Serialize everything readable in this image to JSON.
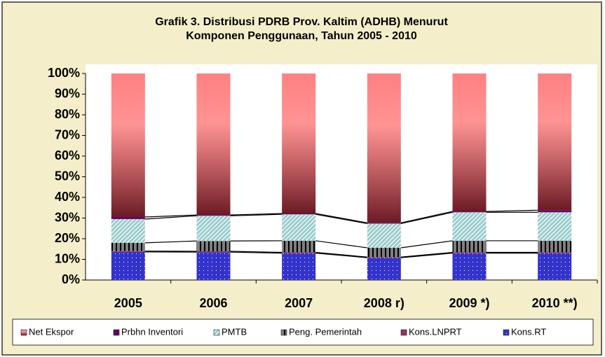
{
  "chart_data": {
    "type": "stacked_bar_100",
    "title": [
      "Grafik 3. Distribusi PDRB Prov. Kaltim (ADHB) Menurut",
      "Komponen Penggunaan, Tahun 2005 - 2010"
    ],
    "categories": [
      "2005",
      "2006",
      "2007",
      "2008 r)",
      "2009 *)",
      "2010 **)"
    ],
    "series": [
      {
        "name": "Kons.RT",
        "color": "#3333cc",
        "values": [
          13.6,
          13.5,
          13.0,
          10.8,
          13.0,
          13.0
        ]
      },
      {
        "name": "Kons.LNPRT",
        "color": "#993366",
        "values": [
          0.4,
          0.4,
          0.4,
          0.3,
          0.4,
          0.4
        ]
      },
      {
        "name": "Peng. Pemerintah",
        "color": "#7f7f7f",
        "values": [
          4.0,
          5.0,
          5.6,
          4.5,
          5.6,
          5.6
        ]
      },
      {
        "name": "PMTB",
        "color": "#99cccc",
        "values": [
          11.5,
          12.2,
          12.8,
          11.7,
          13.8,
          13.8
        ]
      },
      {
        "name": "Prbhn Inventori",
        "color": "#660066",
        "values": [
          1.0,
          0.4,
          0.4,
          0.4,
          0.4,
          1.0
        ]
      },
      {
        "name": "Net Ekspor",
        "color": "#ff8080",
        "values": [
          69.5,
          68.5,
          67.8,
          72.3,
          66.8,
          66.2
        ]
      }
    ],
    "ylim": [
      0,
      100
    ],
    "yticks": [
      {
        "value": 0,
        "label": "0%"
      },
      {
        "value": 10,
        "label": "10%"
      },
      {
        "value": 20,
        "label": "20%"
      },
      {
        "value": 30,
        "label": "30%"
      },
      {
        "value": 40,
        "label": "40%"
      },
      {
        "value": 50,
        "label": "50%"
      },
      {
        "value": 60,
        "label": "60%"
      },
      {
        "value": 70,
        "label": "70%"
      },
      {
        "value": 80,
        "label": "80%"
      },
      {
        "value": 90,
        "label": "90%"
      },
      {
        "value": 100,
        "label": "100%"
      }
    ],
    "series_lines": true,
    "legend": "bottom"
  }
}
